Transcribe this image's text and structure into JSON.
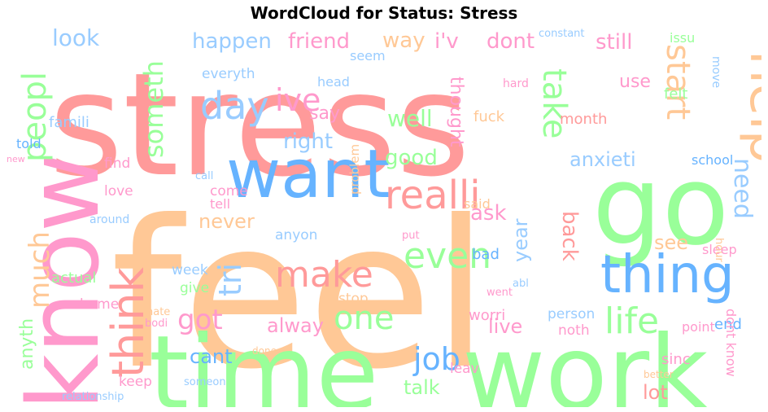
{
  "title": "WordCloud for Status: Stress",
  "colors": {
    "red": "#ff9a9a",
    "orange": "#ffc896",
    "green": "#99ff99",
    "blue": "#66b3ff",
    "pink": "#ff99cc",
    "lightblue": "#99ccff"
  },
  "words": [
    {
      "text": "stress",
      "color": "red"
    },
    {
      "text": "feel",
      "color": "orange"
    },
    {
      "text": "time",
      "color": "green"
    },
    {
      "text": "work",
      "color": "green"
    },
    {
      "text": "go",
      "color": "green"
    },
    {
      "text": "know",
      "color": "pink"
    },
    {
      "text": "want",
      "color": "blue"
    },
    {
      "text": "help",
      "color": "orange"
    },
    {
      "text": "thing",
      "color": "blue"
    },
    {
      "text": "realli",
      "color": "red"
    },
    {
      "text": "think",
      "color": "red"
    },
    {
      "text": "day",
      "color": "lightblue"
    },
    {
      "text": "peopl",
      "color": "green"
    },
    {
      "text": "make",
      "color": "red"
    },
    {
      "text": "even",
      "color": "green"
    },
    {
      "text": "life",
      "color": "green"
    },
    {
      "text": "one",
      "color": "green"
    },
    {
      "text": "start",
      "color": "orange"
    },
    {
      "text": "take",
      "color": "green"
    },
    {
      "text": "ive",
      "color": "pink"
    },
    {
      "text": "job",
      "color": "blue"
    },
    {
      "text": "got",
      "color": "pink"
    },
    {
      "text": "much",
      "color": "orange"
    },
    {
      "text": "someth",
      "color": "green"
    },
    {
      "text": "need",
      "color": "lightblue"
    },
    {
      "text": "tri",
      "color": "lightblue"
    },
    {
      "text": "look",
      "color": "lightblue"
    },
    {
      "text": "happen",
      "color": "lightblue"
    },
    {
      "text": "friend",
      "color": "pink"
    },
    {
      "text": "way",
      "color": "orange"
    },
    {
      "text": "i'v",
      "color": "pink"
    },
    {
      "text": "dont",
      "color": "pink"
    },
    {
      "text": "still",
      "color": "pink"
    },
    {
      "text": "well",
      "color": "green"
    },
    {
      "text": "right",
      "color": "lightblue"
    },
    {
      "text": "good",
      "color": "green"
    },
    {
      "text": "say",
      "color": "pink"
    },
    {
      "text": "thought",
      "color": "pink"
    },
    {
      "text": "anxieti",
      "color": "lightblue"
    },
    {
      "text": "use",
      "color": "pink"
    },
    {
      "text": "never",
      "color": "orange"
    },
    {
      "text": "ask",
      "color": "pink"
    },
    {
      "text": "back",
      "color": "red"
    },
    {
      "text": "see",
      "color": "orange"
    },
    {
      "text": "year",
      "color": "lightblue"
    },
    {
      "text": "alway",
      "color": "pink"
    },
    {
      "text": "anyth",
      "color": "green"
    },
    {
      "text": "cant",
      "color": "blue"
    },
    {
      "text": "live",
      "color": "pink"
    },
    {
      "text": "lot",
      "color": "red"
    },
    {
      "text": "talk",
      "color": "green"
    },
    {
      "text": "famili",
      "color": "lightblue"
    },
    {
      "text": "everyth",
      "color": "lightblue"
    },
    {
      "text": "seem",
      "color": "lightblue"
    },
    {
      "text": "head",
      "color": "lightblue"
    },
    {
      "text": "fuck",
      "color": "orange"
    },
    {
      "text": "month",
      "color": "red"
    },
    {
      "text": "felt",
      "color": "green"
    },
    {
      "text": "issu",
      "color": "green"
    },
    {
      "text": "move",
      "color": "lightblue"
    },
    {
      "text": "constant",
      "color": "lightblue"
    },
    {
      "text": "hard",
      "color": "pink"
    },
    {
      "text": "told",
      "color": "blue"
    },
    {
      "text": "new",
      "color": "pink"
    },
    {
      "text": "find",
      "color": "pink"
    },
    {
      "text": "love",
      "color": "pink"
    },
    {
      "text": "call",
      "color": "lightblue"
    },
    {
      "text": "come",
      "color": "pink"
    },
    {
      "text": "said",
      "color": "orange"
    },
    {
      "text": "school",
      "color": "blue"
    },
    {
      "text": "tell",
      "color": "pink"
    },
    {
      "text": "problem",
      "color": "orange"
    },
    {
      "text": "anyon",
      "color": "lightblue"
    },
    {
      "text": "sleep",
      "color": "pink"
    },
    {
      "text": "hour",
      "color": "orange"
    },
    {
      "text": "around",
      "color": "lightblue"
    },
    {
      "text": "put",
      "color": "pink"
    },
    {
      "text": "bad",
      "color": "blue"
    },
    {
      "text": "week",
      "color": "lightblue"
    },
    {
      "text": "actual",
      "color": "green"
    },
    {
      "text": "give",
      "color": "green"
    },
    {
      "text": "stop",
      "color": "orange"
    },
    {
      "text": "abl",
      "color": "lightblue"
    },
    {
      "text": "home",
      "color": "pink"
    },
    {
      "text": "went",
      "color": "pink"
    },
    {
      "text": "worri",
      "color": "pink"
    },
    {
      "text": "person",
      "color": "lightblue"
    },
    {
      "text": "point",
      "color": "pink"
    },
    {
      "text": "hate",
      "color": "orange"
    },
    {
      "text": "bodi",
      "color": "pink"
    },
    {
      "text": "noth",
      "color": "pink"
    },
    {
      "text": "end",
      "color": "blue"
    },
    {
      "text": "done",
      "color": "orange"
    },
    {
      "text": "sinc",
      "color": "pink"
    },
    {
      "text": "keep",
      "color": "pink"
    },
    {
      "text": "leav",
      "color": "pink"
    },
    {
      "text": "dont know",
      "color": "pink"
    },
    {
      "text": "someon",
      "color": "lightblue"
    },
    {
      "text": "better",
      "color": "orange"
    },
    {
      "text": "relationship",
      "color": "lightblue"
    }
  ]
}
